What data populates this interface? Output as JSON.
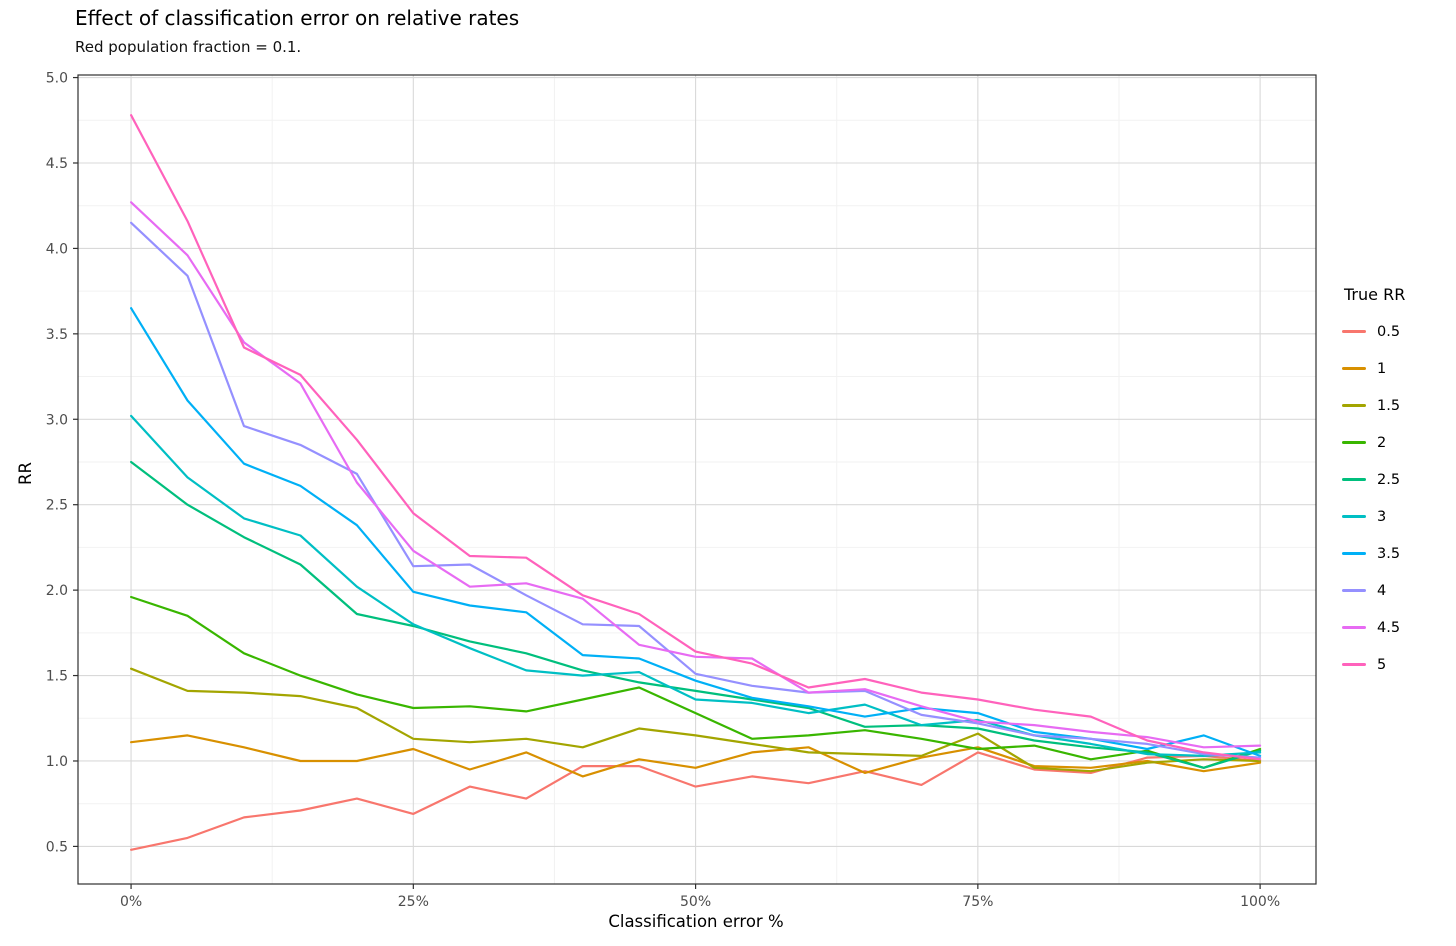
{
  "title": "Effect of classification error on relative rates",
  "subtitle": "Red population fraction = 0.1.",
  "colors": {
    "background": "#ffffff",
    "panel_border": "#2f2f2f",
    "grid_major": "#d9d9d9",
    "grid_minor": "#f2f2f2",
    "tick_mark": "#2f2f2f",
    "tick_text": "#4d4d4d",
    "text": "#000000"
  },
  "chart_data": {
    "type": "line",
    "title": "Effect of classification error on relative rates",
    "subtitle": "Red population fraction = 0.1.",
    "xlabel": "Classification error %",
    "ylabel": "RR",
    "legend_title": "True RR",
    "legend_position": "right",
    "grid": "on",
    "xlim": [
      -4.7,
      104.95
    ],
    "ylim": [
      0.28,
      5.015
    ],
    "x_ticks": [
      0,
      25,
      50,
      75,
      100
    ],
    "x_tick_labels": [
      "0%",
      "25%",
      "50%",
      "75%",
      "100%"
    ],
    "x_minor_ticks": [
      12.5,
      37.5,
      62.5,
      87.5
    ],
    "y_ticks": [
      0.5,
      1.0,
      1.5,
      2.0,
      2.5,
      3.0,
      3.5,
      4.0,
      4.5,
      5.0
    ],
    "y_tick_labels": [
      "0.5",
      "1.0",
      "1.5",
      "2.0",
      "2.5",
      "3.0",
      "3.5",
      "4.0",
      "4.5",
      "5.0"
    ],
    "y_minor_ticks": [
      0.75,
      1.25,
      1.75,
      2.25,
      2.75,
      3.25,
      3.75,
      4.25,
      4.75
    ],
    "x": [
      0,
      5,
      10,
      15,
      20,
      25,
      30,
      35,
      40,
      45,
      50,
      55,
      60,
      65,
      70,
      75,
      80,
      85,
      90,
      95,
      100
    ],
    "series": [
      {
        "name": "0.5",
        "color": "#F8766D",
        "values": [
          0.48,
          0.55,
          0.67,
          0.71,
          0.78,
          0.69,
          0.85,
          0.78,
          0.97,
          0.97,
          0.85,
          0.91,
          0.87,
          0.94,
          0.86,
          1.05,
          0.95,
          0.93,
          1.02,
          1.03,
          1.0
        ]
      },
      {
        "name": "1",
        "color": "#D89000",
        "values": [
          1.11,
          1.15,
          1.08,
          1.0,
          1.0,
          1.07,
          0.95,
          1.05,
          0.91,
          1.01,
          0.96,
          1.05,
          1.08,
          0.93,
          1.02,
          1.08,
          0.97,
          0.96,
          1.0,
          0.94,
          0.99
        ]
      },
      {
        "name": "1.5",
        "color": "#A3A500",
        "values": [
          1.54,
          1.41,
          1.4,
          1.38,
          1.31,
          1.13,
          1.11,
          1.13,
          1.08,
          1.19,
          1.15,
          1.1,
          1.05,
          1.04,
          1.03,
          1.16,
          0.96,
          0.94,
          0.99,
          1.01,
          1.0
        ]
      },
      {
        "name": "2",
        "color": "#39B600",
        "values": [
          1.96,
          1.85,
          1.63,
          1.5,
          1.39,
          1.31,
          1.32,
          1.29,
          1.36,
          1.43,
          1.28,
          1.13,
          1.15,
          1.18,
          1.13,
          1.07,
          1.09,
          1.01,
          1.06,
          0.96,
          1.07
        ]
      },
      {
        "name": "2.5",
        "color": "#00BF7D",
        "values": [
          2.75,
          2.5,
          2.31,
          2.15,
          1.86,
          1.79,
          1.7,
          1.63,
          1.53,
          1.46,
          1.41,
          1.36,
          1.31,
          1.2,
          1.21,
          1.19,
          1.12,
          1.08,
          1.05,
          0.96,
          1.06
        ]
      },
      {
        "name": "3",
        "color": "#00BFC4",
        "values": [
          3.02,
          2.66,
          2.42,
          2.32,
          2.02,
          1.8,
          1.66,
          1.53,
          1.5,
          1.52,
          1.36,
          1.34,
          1.28,
          1.33,
          1.21,
          1.24,
          1.15,
          1.1,
          1.04,
          1.03,
          1.05
        ]
      },
      {
        "name": "3.5",
        "color": "#00B0F6",
        "values": [
          3.65,
          3.11,
          2.74,
          2.61,
          2.38,
          1.99,
          1.91,
          1.87,
          1.62,
          1.6,
          1.47,
          1.37,
          1.32,
          1.26,
          1.31,
          1.28,
          1.17,
          1.13,
          1.07,
          1.15,
          1.03
        ]
      },
      {
        "name": "4",
        "color": "#9590FF",
        "values": [
          4.15,
          3.84,
          2.96,
          2.85,
          2.68,
          2.14,
          2.15,
          1.97,
          1.8,
          1.79,
          1.51,
          1.44,
          1.4,
          1.41,
          1.27,
          1.22,
          1.15,
          1.13,
          1.1,
          1.04,
          1.02
        ]
      },
      {
        "name": "4.5",
        "color": "#E76BF3",
        "values": [
          4.27,
          3.96,
          3.45,
          3.21,
          2.63,
          2.23,
          2.02,
          2.04,
          1.95,
          1.68,
          1.61,
          1.6,
          1.4,
          1.42,
          1.32,
          1.23,
          1.21,
          1.17,
          1.14,
          1.08,
          1.09
        ]
      },
      {
        "name": "5",
        "color": "#FF62BC",
        "values": [
          4.78,
          4.16,
          3.42,
          3.26,
          2.88,
          2.45,
          2.2,
          2.19,
          1.97,
          1.86,
          1.64,
          1.57,
          1.43,
          1.48,
          1.4,
          1.36,
          1.3,
          1.26,
          1.12,
          1.05,
          1.01
        ]
      }
    ]
  }
}
